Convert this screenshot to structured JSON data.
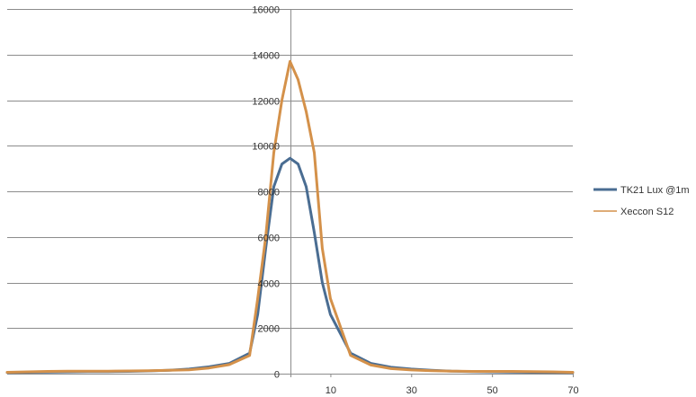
{
  "chart_data": {
    "type": "line",
    "title": "",
    "xlabel": "",
    "ylabel": "",
    "ylim": [
      0,
      16000
    ],
    "y_ticks": [
      0,
      2000,
      4000,
      6000,
      8000,
      10000,
      12000,
      14000,
      16000
    ],
    "y_tick_labels": [
      "0",
      "2000",
      "4000",
      "6000",
      "8000",
      "10000",
      "12000",
      "14000",
      "16000"
    ],
    "x": [
      -70,
      -65,
      -60,
      -55,
      -50,
      -45,
      -40,
      -35,
      -30,
      -25,
      -20,
      -15,
      -10,
      -8,
      -6,
      -4,
      -2,
      0,
      2,
      4,
      6,
      8,
      10,
      15,
      20,
      25,
      30,
      35,
      40,
      45,
      50,
      55,
      60,
      65,
      70
    ],
    "xlim": [
      -70,
      70
    ],
    "x_ticks": [
      10,
      30,
      50,
      70
    ],
    "x_tick_labels": [
      "10",
      "30",
      "50",
      "70"
    ],
    "grid": "horizontal",
    "legend_position": "right",
    "series": [
      {
        "name": "TK21 Lux @1m",
        "color": "#4a6d92",
        "line_width": "thick",
        "values": [
          50,
          60,
          70,
          80,
          85,
          90,
          100,
          120,
          150,
          200,
          300,
          450,
          900,
          2600,
          5500,
          8200,
          9200,
          9450,
          9200,
          8200,
          6200,
          4000,
          2600,
          900,
          450,
          280,
          200,
          150,
          110,
          90,
          80,
          70,
          60,
          55,
          50
        ]
      },
      {
        "name": "Xeccon S12",
        "color": "#d4914a",
        "line_width": "thick",
        "values": [
          60,
          80,
          100,
          110,
          110,
          110,
          120,
          130,
          150,
          170,
          250,
          400,
          800,
          3300,
          6000,
          9700,
          12000,
          13700,
          12900,
          11500,
          9700,
          5500,
          3300,
          800,
          380,
          220,
          160,
          130,
          110,
          100,
          100,
          100,
          90,
          80,
          60
        ]
      }
    ]
  }
}
